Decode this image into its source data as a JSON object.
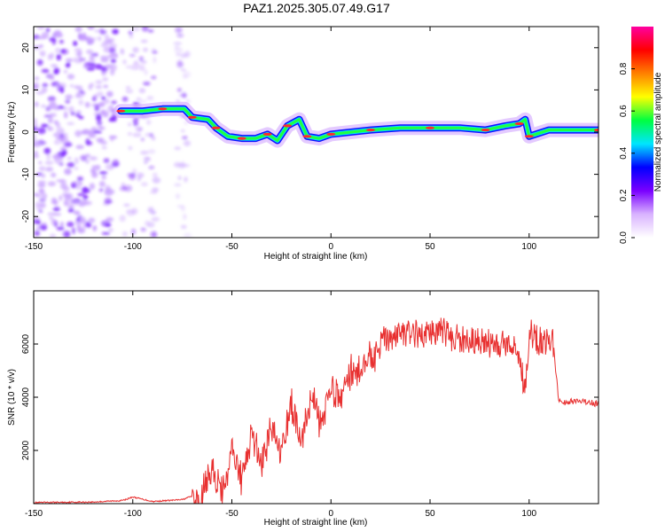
{
  "figure_title": "PAZ1.2025.305.07.49.G17",
  "chart_data": [
    {
      "type": "heatmap",
      "xlabel": "Height of straight line (km)",
      "ylabel": "Frequency (Hz)",
      "xlim": [
        -150,
        135
      ],
      "ylim": [
        -25,
        25
      ],
      "x_ticks": [
        -150,
        -100,
        -50,
        0,
        50,
        100
      ],
      "y_ticks": [
        -20,
        -10,
        0,
        10,
        20
      ],
      "colorbar": {
        "label": "Normalized spectral amplitude",
        "range": [
          0,
          1
        ],
        "ticks": [
          "0.0",
          "0.2",
          "0.4",
          "0.6",
          "0.8"
        ],
        "colors": [
          "#ffffff",
          "#d9b3ff",
          "#7a00ff",
          "#0000ff",
          "#00e5ff",
          "#00ff40",
          "#ffff00",
          "#ff8000",
          "#ff0000",
          "#ff00a0"
        ]
      },
      "ridge": [
        {
          "x": -106,
          "y": 5
        },
        {
          "x": -95,
          "y": 5
        },
        {
          "x": -85,
          "y": 5.5
        },
        {
          "x": -74,
          "y": 5.5
        },
        {
          "x": -70,
          "y": 3.5
        },
        {
          "x": -62,
          "y": 3
        },
        {
          "x": -58,
          "y": 1
        },
        {
          "x": -52,
          "y": -1
        },
        {
          "x": -45,
          "y": -1.5
        },
        {
          "x": -38,
          "y": -1.5
        },
        {
          "x": -32,
          "y": -0.5
        },
        {
          "x": -27,
          "y": -2
        },
        {
          "x": -22,
          "y": 1.5
        },
        {
          "x": -16,
          "y": 3
        },
        {
          "x": -12,
          "y": -1
        },
        {
          "x": -6,
          "y": -1.5
        },
        {
          "x": 0,
          "y": -0.5
        },
        {
          "x": 10,
          "y": 0
        },
        {
          "x": 20,
          "y": 0.5
        },
        {
          "x": 35,
          "y": 1
        },
        {
          "x": 50,
          "y": 1
        },
        {
          "x": 65,
          "y": 1
        },
        {
          "x": 78,
          "y": 0.5
        },
        {
          "x": 88,
          "y": 1.5
        },
        {
          "x": 95,
          "y": 2
        },
        {
          "x": 98,
          "y": 3
        },
        {
          "x": 100,
          "y": -1
        },
        {
          "x": 110,
          "y": 0.5
        },
        {
          "x": 135,
          "y": 0.5
        }
      ]
    },
    {
      "type": "line",
      "xlabel": "Height of straight line (km)",
      "ylabel": "SNR (10 * v/v)",
      "xlim": [
        -150,
        135
      ],
      "ylim": [
        0,
        8000
      ],
      "x_ticks": [
        -150,
        -100,
        -50,
        0,
        50,
        100
      ],
      "y_ticks": [
        2000,
        4000,
        6000
      ],
      "series": [
        {
          "color": "#e83030",
          "points": [
            {
              "x": -150,
              "y": 40
            },
            {
              "x": -120,
              "y": 60
            },
            {
              "x": -105,
              "y": 120
            },
            {
              "x": -100,
              "y": 250
            },
            {
              "x": -90,
              "y": 80
            },
            {
              "x": -75,
              "y": 150
            },
            {
              "x": -66,
              "y": 400
            },
            {
              "x": -60,
              "y": 1700
            },
            {
              "x": -55,
              "y": 700
            },
            {
              "x": -50,
              "y": 2300
            },
            {
              "x": -45,
              "y": 1200
            },
            {
              "x": -40,
              "y": 2900
            },
            {
              "x": -35,
              "y": 1800
            },
            {
              "x": -30,
              "y": 3300
            },
            {
              "x": -25,
              "y": 2300
            },
            {
              "x": -20,
              "y": 4100
            },
            {
              "x": -15,
              "y": 2600
            },
            {
              "x": -10,
              "y": 4400
            },
            {
              "x": -5,
              "y": 3300
            },
            {
              "x": 0,
              "y": 4700
            },
            {
              "x": 5,
              "y": 4300
            },
            {
              "x": 10,
              "y": 5200
            },
            {
              "x": 15,
              "y": 5400
            },
            {
              "x": 20,
              "y": 5900
            },
            {
              "x": 25,
              "y": 6100
            },
            {
              "x": 30,
              "y": 6300
            },
            {
              "x": 40,
              "y": 6400
            },
            {
              "x": 50,
              "y": 6300
            },
            {
              "x": 55,
              "y": 6600
            },
            {
              "x": 60,
              "y": 6200
            },
            {
              "x": 70,
              "y": 6200
            },
            {
              "x": 80,
              "y": 6000
            },
            {
              "x": 90,
              "y": 6100
            },
            {
              "x": 95,
              "y": 5500
            },
            {
              "x": 98,
              "y": 4200
            },
            {
              "x": 100,
              "y": 6500
            },
            {
              "x": 105,
              "y": 6100
            },
            {
              "x": 112,
              "y": 6100
            },
            {
              "x": 115,
              "y": 3850
            },
            {
              "x": 125,
              "y": 3850
            },
            {
              "x": 135,
              "y": 3750
            }
          ]
        }
      ]
    }
  ]
}
